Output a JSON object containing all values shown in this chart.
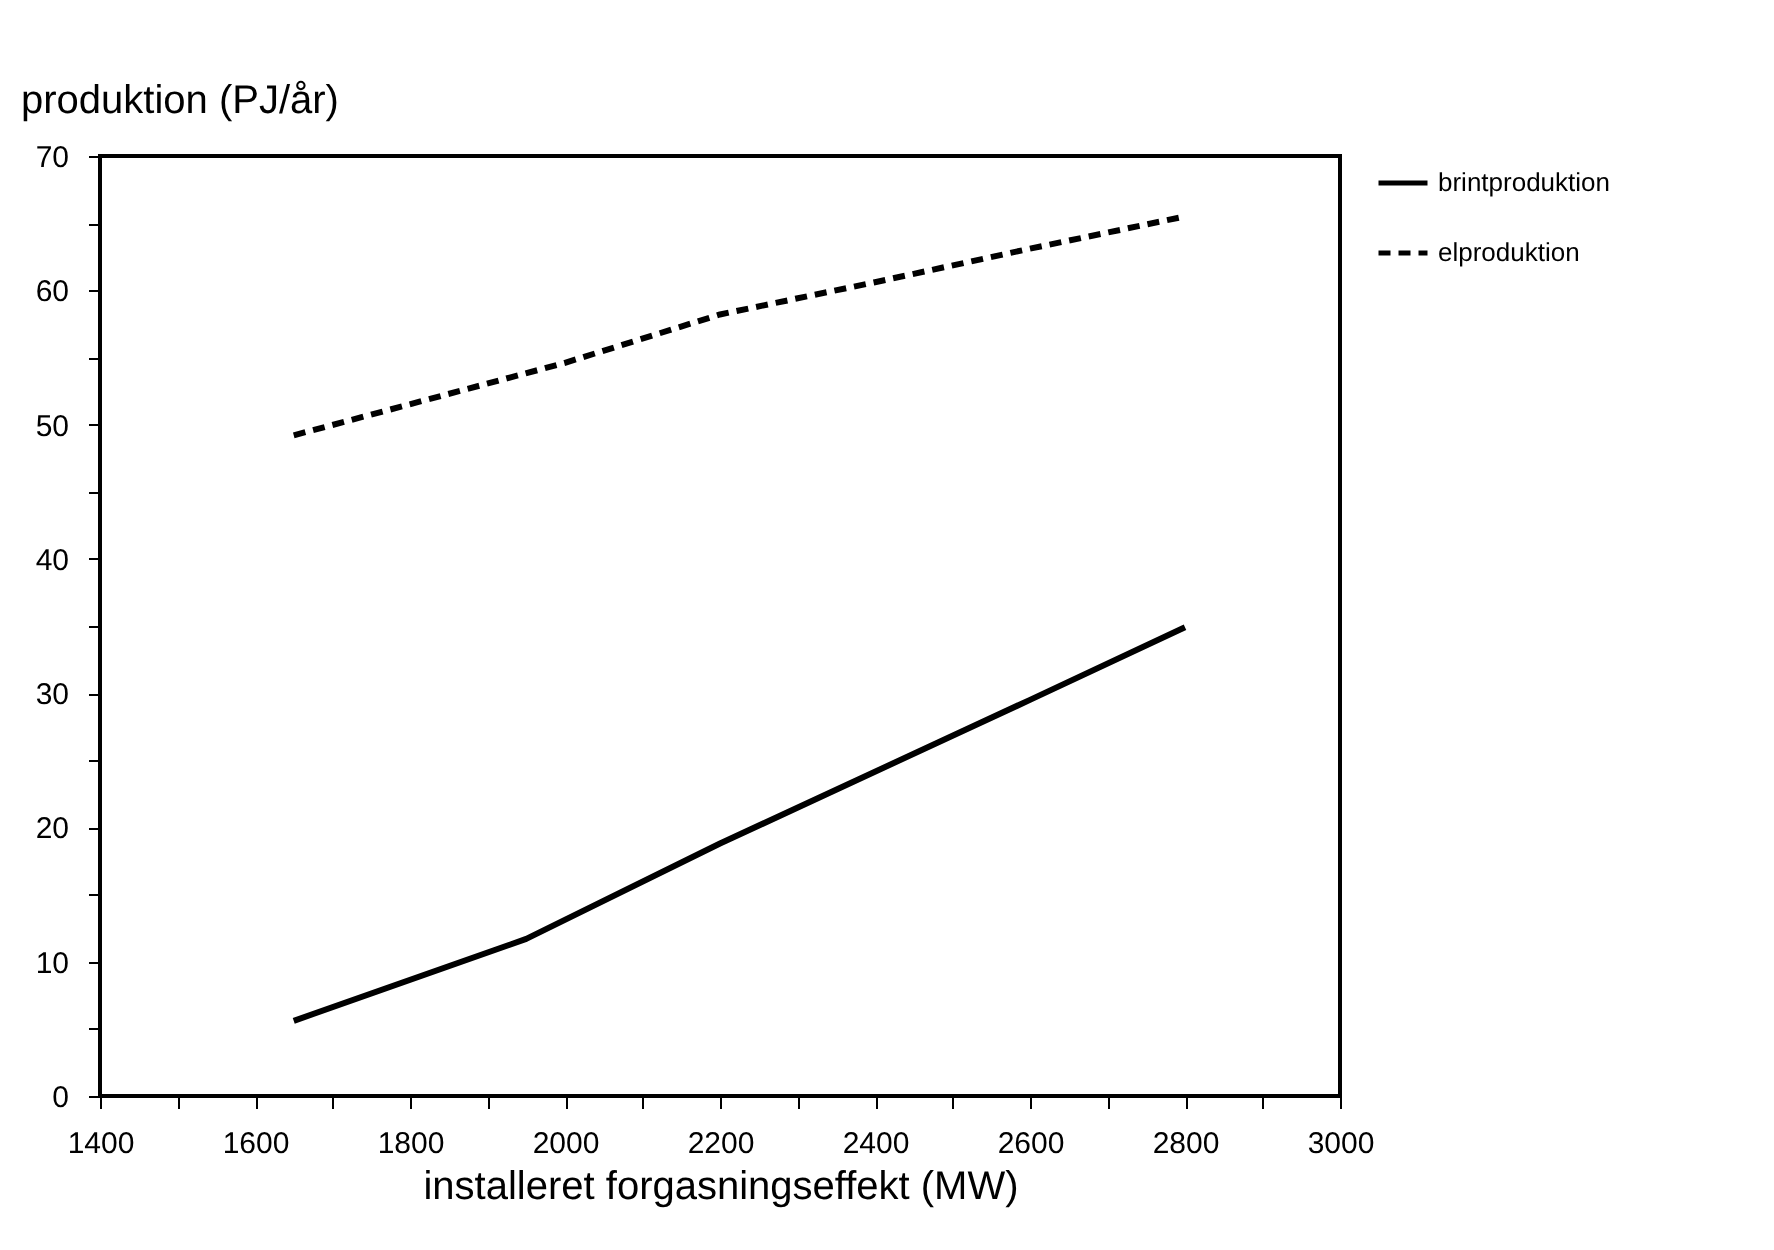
{
  "chart_data": {
    "type": "line",
    "ylabel": "produktion (PJ/år)",
    "xlabel": "installeret forgasningseffekt (MW)",
    "xlim": [
      1400,
      3000
    ],
    "ylim": [
      0,
      70
    ],
    "xticks": [
      1400,
      {
        "value": 1500,
        "label": null
      },
      1600,
      {
        "value": 1700,
        "label": null
      },
      1800,
      {
        "value": 1900,
        "label": null
      },
      2000,
      {
        "value": 2100,
        "label": null
      },
      2200,
      {
        "value": 2300,
        "label": null
      },
      2400,
      {
        "value": 2500,
        "label": null
      },
      2600,
      {
        "value": 2700,
        "label": null
      },
      2800,
      {
        "value": 2900,
        "label": null
      },
      3000
    ],
    "yticks": [
      0,
      {
        "value": 5,
        "label": null
      },
      10,
      {
        "value": 15,
        "label": null
      },
      20,
      {
        "value": 25,
        "label": null
      },
      30,
      {
        "value": 35,
        "label": null
      },
      40,
      {
        "value": 45,
        "label": null
      },
      50,
      {
        "value": 55,
        "label": null
      },
      60,
      {
        "value": 65,
        "label": null
      },
      70
    ],
    "grid": false,
    "legend": "top right",
    "marker": "none",
    "series": [
      {
        "name": "brintproduktion",
        "color": "#000000",
        "line_style": "solid",
        "x": [
          1650,
          1950,
          2200,
          2600,
          2800
        ],
        "values": [
          5.6,
          11.7,
          18.8,
          29.5,
          34.9
        ]
      },
      {
        "name": "elproduktion",
        "color": "#000000",
        "line_style": "dashed",
        "x": [
          1650,
          2000,
          2200,
          2400,
          2600,
          2800
        ],
        "values": [
          49.2,
          54.6,
          58.2,
          60.6,
          63.1,
          65.5
        ]
      }
    ]
  }
}
